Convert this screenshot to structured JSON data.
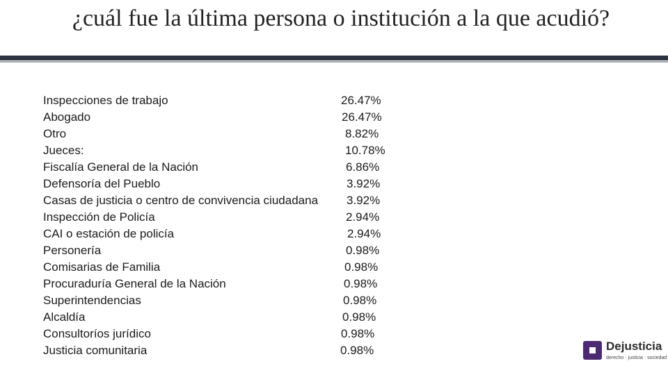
{
  "slide": {
    "title": "¿cuál fue la última persona o institución a la que acudió?"
  },
  "items": [
    {
      "label": "Inspecciones de trabajo",
      "value": "26.47%"
    },
    {
      "label": "Abogado",
      "value": "26.47%"
    },
    {
      "label": "Otro",
      "value": "8.82%"
    },
    {
      "label": "Jueces:",
      "value": "10.78%"
    },
    {
      "label": "Fiscalía General de la Nación",
      "value": "6.86%"
    },
    {
      "label": "Defensoría del Pueblo",
      "value": "3.92%"
    },
    {
      "label": "Casas de justicia o centro de convivencia ciudadana",
      "value": "3.92%"
    },
    {
      "label": "Inspección de Policía",
      "value": "2.94%"
    },
    {
      "label": "CAI o estación de policía",
      "value": "2.94%"
    },
    {
      "label": "Personería",
      "value": "0.98%"
    },
    {
      "label": "Comisarias de Familia",
      "value": "0.98%"
    },
    {
      "label": "Procuraduría General de la Nación",
      "value": "0.98%"
    },
    {
      "label": "Superintendencias",
      "value": "0.98%"
    },
    {
      "label": "Alcaldía",
      "value": "0.98%"
    },
    {
      "label": "Consultoríos jurídico",
      "value": "0.98%"
    },
    {
      "label": "Justicia comunitaria",
      "value": "0.98%"
    }
  ],
  "logo": {
    "name": "Dejusticia",
    "tagline": "derecho · justicia · sociedad",
    "icon": "dejusticia-logo-mark",
    "color": "#4b2a73"
  }
}
